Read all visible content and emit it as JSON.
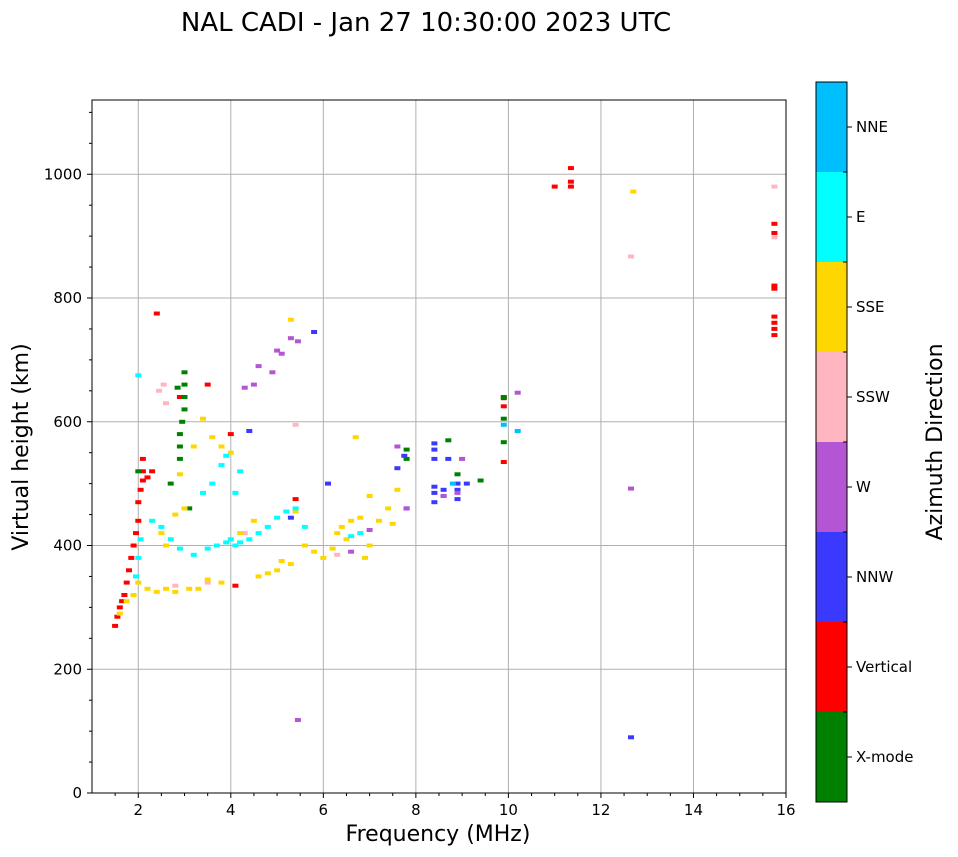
{
  "chart_data": {
    "type": "scatter",
    "title": "NAL CADI - Jan 27 10:30:00 2023 UTC",
    "xlabel": "Frequency (MHz)",
    "ylabel": "Virtual height (km)",
    "xlim": [
      1,
      16
    ],
    "ylim": [
      0,
      1120
    ],
    "xticks": [
      2,
      4,
      6,
      8,
      10,
      12,
      14,
      16
    ],
    "yticks": [
      0,
      200,
      400,
      600,
      800,
      1000
    ],
    "grid": true,
    "colorbar": {
      "title": "Azimuth Direction",
      "categories": [
        {
          "label": "X-mode",
          "color": "#008000"
        },
        {
          "label": "Vertical",
          "color": "#ff0000"
        },
        {
          "label": "NNW",
          "color": "#3a3aff"
        },
        {
          "label": "W",
          "color": "#b455d4"
        },
        {
          "label": "SSW",
          "color": "#ffb6c1"
        },
        {
          "label": "SSE",
          "color": "#ffd700"
        },
        {
          "label": "E",
          "color": "#00ffff"
        },
        {
          "label": "NNE",
          "color": "#00bfff"
        }
      ]
    },
    "series": [
      {
        "name": "Vertical",
        "points": [
          [
            1.5,
            270
          ],
          [
            1.55,
            285
          ],
          [
            1.6,
            300
          ],
          [
            1.65,
            310
          ],
          [
            1.7,
            320
          ],
          [
            1.75,
            340
          ],
          [
            1.8,
            360
          ],
          [
            1.85,
            380
          ],
          [
            1.9,
            400
          ],
          [
            1.95,
            420
          ],
          [
            2.0,
            440
          ],
          [
            2.0,
            470
          ],
          [
            2.05,
            490
          ],
          [
            2.1,
            505
          ],
          [
            2.1,
            520
          ],
          [
            2.1,
            540
          ],
          [
            2.2,
            510
          ],
          [
            2.3,
            520
          ],
          [
            2.4,
            775
          ],
          [
            2.9,
            640
          ],
          [
            3.0,
            640
          ],
          [
            3.5,
            660
          ],
          [
            4.0,
            580
          ],
          [
            4.1,
            335
          ],
          [
            5.4,
            475
          ],
          [
            9.9,
            535
          ],
          [
            9.9,
            625
          ],
          [
            9.9,
            638
          ],
          [
            11.0,
            980
          ],
          [
            11.35,
            980
          ],
          [
            11.35,
            988
          ],
          [
            11.35,
            1010
          ],
          [
            15.75,
            740
          ],
          [
            15.75,
            750
          ],
          [
            15.75,
            760
          ],
          [
            15.75,
            770
          ],
          [
            15.75,
            815
          ],
          [
            15.75,
            820
          ],
          [
            15.75,
            905
          ],
          [
            15.75,
            920
          ]
        ]
      },
      {
        "name": "X-mode",
        "points": [
          [
            2.0,
            520
          ],
          [
            2.7,
            500
          ],
          [
            2.9,
            540
          ],
          [
            2.9,
            560
          ],
          [
            2.9,
            580
          ],
          [
            2.95,
            600
          ],
          [
            3.0,
            620
          ],
          [
            3.0,
            640
          ],
          [
            3.0,
            660
          ],
          [
            3.0,
            680
          ],
          [
            2.85,
            655
          ],
          [
            3.1,
            460
          ],
          [
            7.8,
            540
          ],
          [
            7.8,
            555
          ],
          [
            8.7,
            570
          ],
          [
            8.9,
            515
          ],
          [
            9.4,
            505
          ],
          [
            9.9,
            567
          ],
          [
            9.9,
            605
          ],
          [
            9.9,
            640
          ]
        ]
      },
      {
        "name": "NNW",
        "points": [
          [
            4.4,
            585
          ],
          [
            5.3,
            445
          ],
          [
            5.8,
            745
          ],
          [
            6.1,
            500
          ],
          [
            7.6,
            525
          ],
          [
            7.75,
            545
          ],
          [
            7.8,
            460
          ],
          [
            8.4,
            470
          ],
          [
            8.4,
            485
          ],
          [
            8.4,
            495
          ],
          [
            8.4,
            540
          ],
          [
            8.4,
            555
          ],
          [
            8.4,
            565
          ],
          [
            8.6,
            480
          ],
          [
            8.6,
            490
          ],
          [
            8.7,
            540
          ],
          [
            8.9,
            475
          ],
          [
            8.9,
            490
          ],
          [
            8.9,
            500
          ],
          [
            9.1,
            500
          ],
          [
            12.65,
            90
          ]
        ]
      },
      {
        "name": "W",
        "points": [
          [
            4.3,
            655
          ],
          [
            4.5,
            660
          ],
          [
            4.6,
            690
          ],
          [
            4.9,
            680
          ],
          [
            5.0,
            715
          ],
          [
            5.1,
            710
          ],
          [
            5.3,
            735
          ],
          [
            5.45,
            730
          ],
          [
            5.45,
            118
          ],
          [
            6.6,
            390
          ],
          [
            7.0,
            425
          ],
          [
            7.6,
            560
          ],
          [
            7.8,
            460
          ],
          [
            8.6,
            480
          ],
          [
            8.9,
            485
          ],
          [
            9.0,
            540
          ],
          [
            10.2,
            647
          ],
          [
            12.65,
            492
          ]
        ]
      },
      {
        "name": "SSW",
        "points": [
          [
            2.45,
            650
          ],
          [
            2.55,
            660
          ],
          [
            2.6,
            630
          ],
          [
            2.8,
            335
          ],
          [
            3.5,
            340
          ],
          [
            4.3,
            420
          ],
          [
            5.4,
            595
          ],
          [
            6.3,
            385
          ],
          [
            12.65,
            867
          ],
          [
            15.75,
            898
          ],
          [
            15.75,
            980
          ]
        ]
      },
      {
        "name": "SSE",
        "points": [
          [
            1.6,
            290
          ],
          [
            1.75,
            310
          ],
          [
            1.9,
            320
          ],
          [
            2.0,
            340
          ],
          [
            2.2,
            330
          ],
          [
            2.4,
            325
          ],
          [
            2.6,
            330
          ],
          [
            2.8,
            325
          ],
          [
            3.1,
            330
          ],
          [
            3.3,
            330
          ],
          [
            3.5,
            345
          ],
          [
            3.8,
            340
          ],
          [
            2.5,
            420
          ],
          [
            2.6,
            400
          ],
          [
            2.8,
            450
          ],
          [
            2.9,
            515
          ],
          [
            3.0,
            460
          ],
          [
            3.2,
            560
          ],
          [
            3.4,
            605
          ],
          [
            3.6,
            575
          ],
          [
            3.8,
            560
          ],
          [
            4.0,
            550
          ],
          [
            4.2,
            420
          ],
          [
            4.5,
            440
          ],
          [
            4.6,
            350
          ],
          [
            4.8,
            355
          ],
          [
            5.0,
            360
          ],
          [
            5.1,
            375
          ],
          [
            5.3,
            370
          ],
          [
            5.4,
            455
          ],
          [
            5.6,
            400
          ],
          [
            5.8,
            390
          ],
          [
            6.0,
            380
          ],
          [
            6.2,
            395
          ],
          [
            6.3,
            420
          ],
          [
            6.4,
            430
          ],
          [
            6.5,
            410
          ],
          [
            6.6,
            440
          ],
          [
            6.7,
            575
          ],
          [
            6.8,
            445
          ],
          [
            6.9,
            380
          ],
          [
            7.0,
            400
          ],
          [
            7.0,
            480
          ],
          [
            7.2,
            440
          ],
          [
            7.4,
            460
          ],
          [
            7.5,
            435
          ],
          [
            7.6,
            490
          ],
          [
            5.3,
            765
          ],
          [
            12.7,
            972
          ]
        ]
      },
      {
        "name": "E",
        "points": [
          [
            1.95,
            350
          ],
          [
            2.0,
            380
          ],
          [
            2.05,
            410
          ],
          [
            2.3,
            440
          ],
          [
            2.5,
            430
          ],
          [
            2.7,
            410
          ],
          [
            2.9,
            395
          ],
          [
            3.2,
            385
          ],
          [
            3.5,
            395
          ],
          [
            3.7,
            400
          ],
          [
            3.9,
            405
          ],
          [
            4.0,
            410
          ],
          [
            4.1,
            400
          ],
          [
            4.2,
            405
          ],
          [
            4.4,
            410
          ],
          [
            4.6,
            420
          ],
          [
            4.8,
            430
          ],
          [
            5.0,
            445
          ],
          [
            5.2,
            455
          ],
          [
            5.4,
            460
          ],
          [
            5.6,
            430
          ],
          [
            3.4,
            485
          ],
          [
            3.6,
            500
          ],
          [
            3.8,
            530
          ],
          [
            3.9,
            545
          ],
          [
            4.1,
            485
          ],
          [
            4.2,
            520
          ],
          [
            2.0,
            675
          ],
          [
            6.6,
            415
          ],
          [
            6.8,
            420
          ]
        ]
      },
      {
        "name": "NNE",
        "points": [
          [
            8.8,
            500
          ],
          [
            10.2,
            585
          ],
          [
            9.9,
            595
          ]
        ]
      }
    ]
  }
}
